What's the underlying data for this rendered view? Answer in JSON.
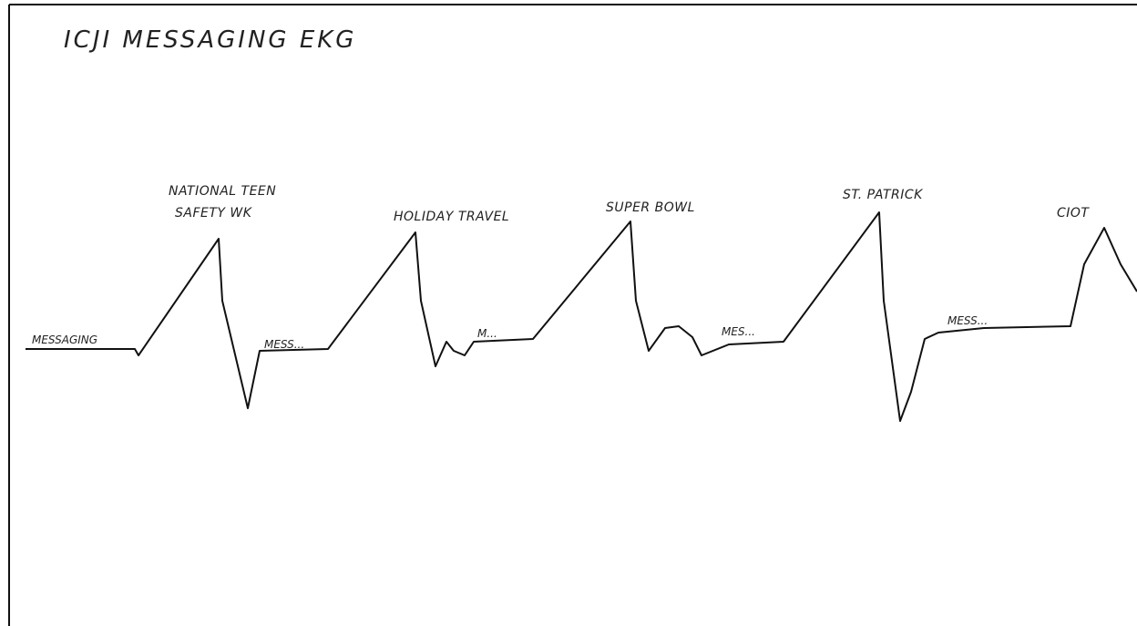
{
  "title": "ICJI MESSAGING EKG",
  "peaks": [
    {
      "lines": [
        "NATIONAL TEEN",
        "SAFETY WK"
      ]
    },
    {
      "lines": [
        "HOLIDAY TRAVEL"
      ]
    },
    {
      "lines": [
        "SUPER BOWL"
      ]
    },
    {
      "lines": [
        "ST. PATRICK"
      ]
    },
    {
      "lines": [
        "CIOT"
      ]
    }
  ],
  "baseline_labels": [
    "MESSAGING",
    "MESS...",
    "M...",
    "MES...",
    "MESS..."
  ]
}
